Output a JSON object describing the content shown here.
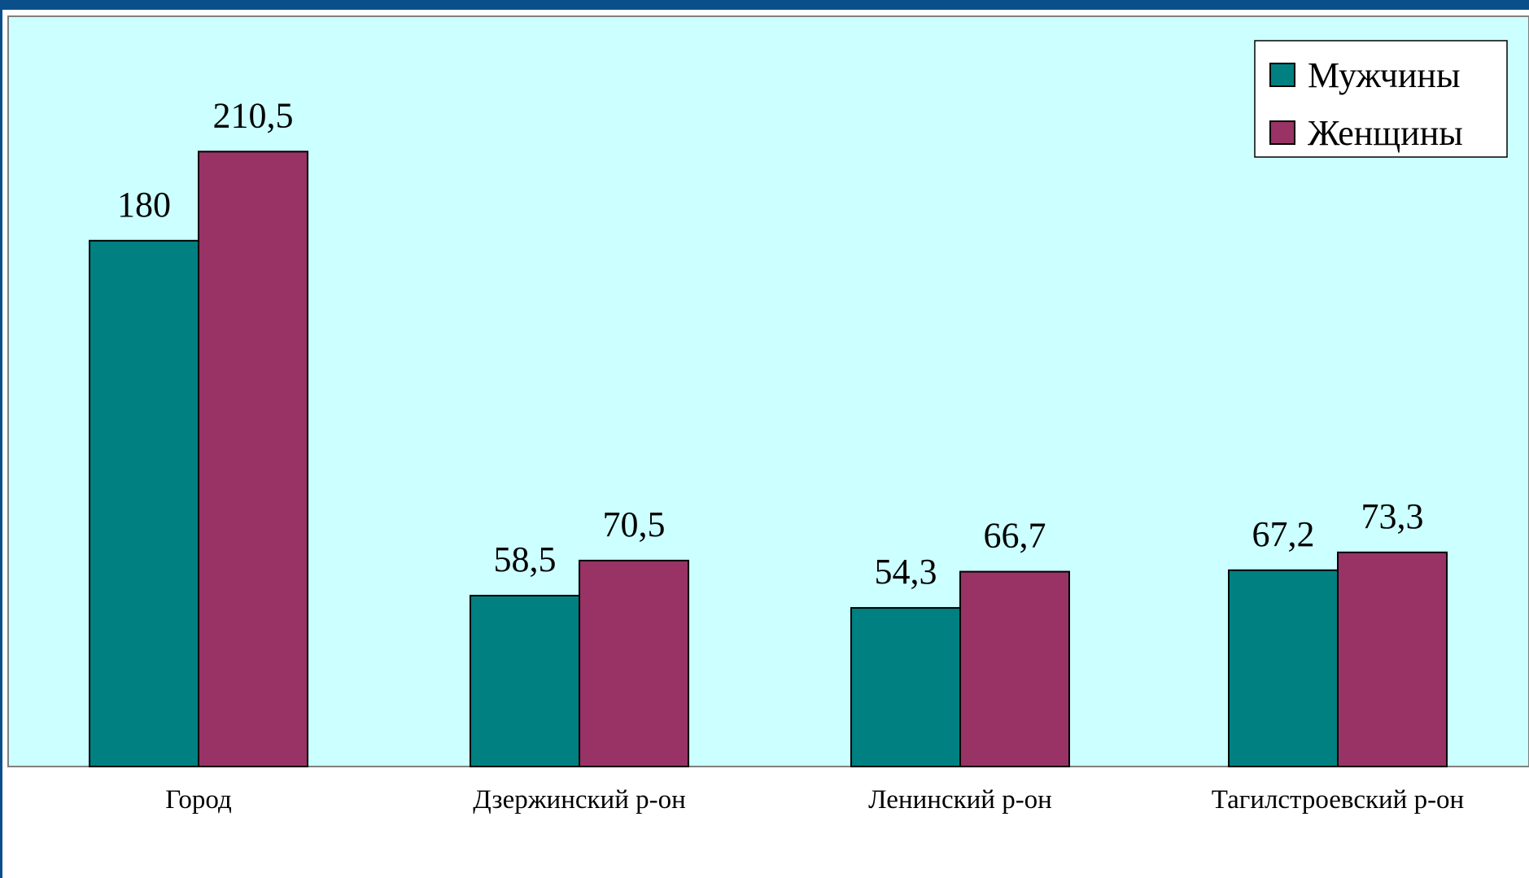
{
  "chart_data": {
    "type": "bar",
    "title": "",
    "xlabel": "",
    "ylabel": "",
    "categories": [
      "Город",
      "Дзержинский  р-он",
      "Ленинский р-он",
      "Тагилстроевский р-он"
    ],
    "series": [
      {
        "name": "Мужчины",
        "values": [
          180,
          58.5,
          54.3,
          67.2
        ],
        "labels": [
          "180",
          "58,5",
          "54,3",
          "67,2"
        ],
        "color": "#008080"
      },
      {
        "name": "Женщины",
        "values": [
          210.5,
          70.5,
          66.7,
          73.3
        ],
        "labels": [
          "210,5",
          "70,5",
          "66,7",
          "73,3"
        ],
        "color": "#993366"
      }
    ],
    "ylim": [
      0,
      255
    ],
    "grid": false,
    "legend_position": "top-right",
    "plot_background": "#ccffff",
    "frame_color": "#0b4f8a"
  }
}
